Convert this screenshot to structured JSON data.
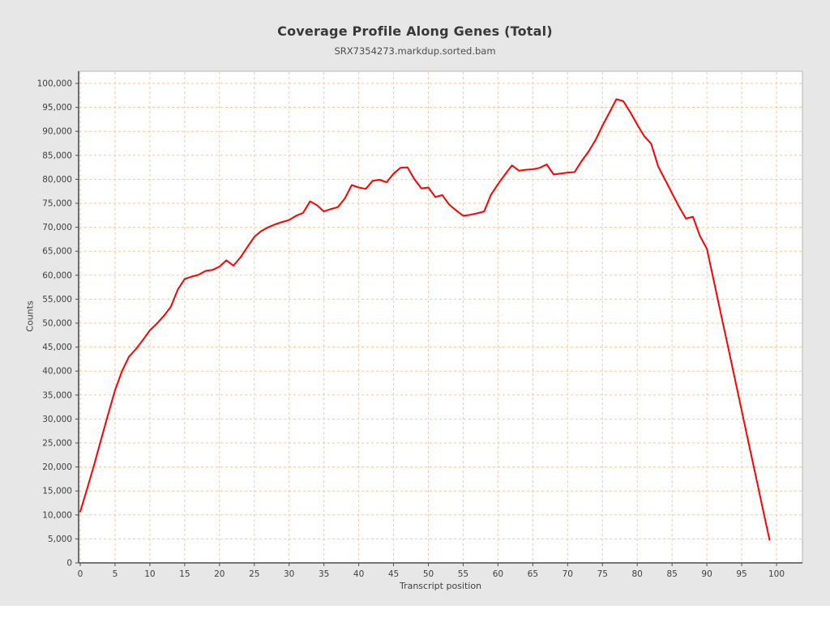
{
  "title": "Coverage Profile Along Genes (Total)",
  "subtitle": "SRX7354273.markdup.sorted.bam",
  "colors": {
    "page_background": "#e7e7e7",
    "plot_background": "#ffffff",
    "grid": "#f6c79e",
    "line": "#fe0000",
    "axis": "#4d4d4d",
    "plot_border": "#b5b5b5",
    "text": "#3f3f3f"
  },
  "chart_data": {
    "type": "line",
    "title": "Coverage Profile Along Genes (Total)",
    "subtitle": "SRX7354273.markdup.sorted.bam",
    "xlabel": "Transcript position",
    "ylabel": "Counts",
    "xlim": [
      0,
      100
    ],
    "ylim": [
      0,
      100000
    ],
    "x_ticks": [
      0,
      5,
      10,
      15,
      20,
      25,
      30,
      35,
      40,
      45,
      50,
      55,
      60,
      65,
      70,
      75,
      80,
      85,
      90,
      95,
      100
    ],
    "y_ticks": [
      0,
      5000,
      10000,
      15000,
      20000,
      25000,
      30000,
      35000,
      40000,
      45000,
      50000,
      55000,
      60000,
      65000,
      70000,
      75000,
      80000,
      85000,
      90000,
      95000,
      100000
    ],
    "grid": "dashed both axes",
    "legend": "none",
    "series": [
      {
        "name": "SRX7354273.markdup.sorted.bam",
        "color": "#fe0000",
        "x": [
          0,
          1,
          2,
          3,
          4,
          5,
          6,
          7,
          8,
          9,
          10,
          11,
          12,
          13,
          14,
          15,
          16,
          17,
          18,
          19,
          20,
          21,
          22,
          23,
          24,
          25,
          26,
          27,
          28,
          29,
          30,
          31,
          32,
          33,
          34,
          35,
          36,
          37,
          38,
          39,
          40,
          41,
          42,
          43,
          44,
          45,
          46,
          47,
          48,
          49,
          50,
          51,
          52,
          53,
          54,
          55,
          56,
          57,
          58,
          59,
          60,
          61,
          62,
          63,
          64,
          65,
          66,
          67,
          68,
          69,
          70,
          71,
          72,
          73,
          74,
          75,
          76,
          77,
          78,
          79,
          80,
          81,
          82,
          83,
          84,
          85,
          86,
          87,
          88,
          89,
          90,
          91,
          92,
          93,
          94,
          95,
          96,
          97,
          98,
          99
        ],
        "y": [
          10700,
          15500,
          20500,
          25800,
          31000,
          36000,
          40000,
          43000,
          44600,
          46500,
          48500,
          49900,
          51500,
          53400,
          57000,
          59200,
          59700,
          60100,
          60900,
          61100,
          61800,
          63100,
          62000,
          63700,
          65900,
          68000,
          69200,
          70000,
          70600,
          71100,
          71500,
          72400,
          73000,
          75400,
          74600,
          73300,
          73800,
          74200,
          76000,
          78800,
          78300,
          78000,
          79700,
          79900,
          79400,
          81200,
          82400,
          82500,
          80000,
          78100,
          78300,
          76300,
          76700,
          74700,
          73500,
          72400,
          72600,
          72900,
          73300,
          76800,
          79000,
          81000,
          82900,
          81800,
          82000,
          82100,
          82400,
          83100,
          81000,
          81200,
          81400,
          81500,
          83800,
          85800,
          88200,
          91200,
          93900,
          96700,
          96300,
          94000,
          91400,
          89000,
          87400,
          82700,
          79900,
          77100,
          74300,
          71800,
          72200,
          68200,
          65500,
          58800,
          52000,
          45300,
          38500,
          31800,
          25000,
          18300,
          11500,
          4800
        ]
      }
    ]
  }
}
